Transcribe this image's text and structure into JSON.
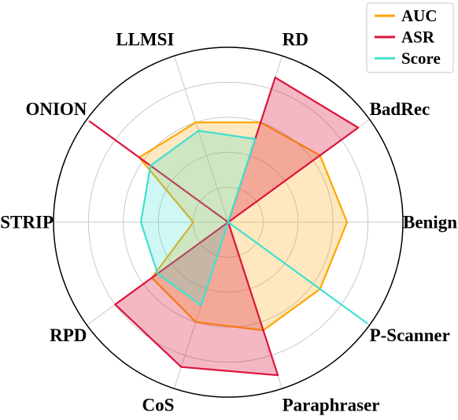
{
  "chart_data": {
    "type": "radar",
    "axes": [
      "Benign",
      "BadRec",
      "RD",
      "LLMSI",
      "ONION",
      "STRIP",
      "RPD",
      "CoS",
      "Paraphraser",
      "P-Scanner"
    ],
    "rlim": [
      0,
      1
    ],
    "grid": true,
    "legend_position": "top-right",
    "series": [
      {
        "name": "AUC",
        "color": "#FFA500",
        "fill_opacity": 0.25,
        "values": [
          0.68,
          0.65,
          0.6,
          0.6,
          0.63,
          0.2,
          0.54,
          0.6,
          0.65,
          0.65
        ]
      },
      {
        "name": "ASR",
        "color": "#DC143C",
        "fill_opacity": 0.3,
        "values": [
          0.0,
          0.92,
          0.87,
          0.0,
          0.98,
          0.0,
          0.8,
          0.87,
          0.92,
          0.0
        ]
      },
      {
        "name": "Score",
        "color": "#40E0D0",
        "fill_opacity": 0.25,
        "values": [
          0.0,
          0.0,
          0.5,
          0.55,
          0.55,
          0.5,
          0.5,
          0.5,
          0.0,
          0.98
        ]
      }
    ]
  }
}
